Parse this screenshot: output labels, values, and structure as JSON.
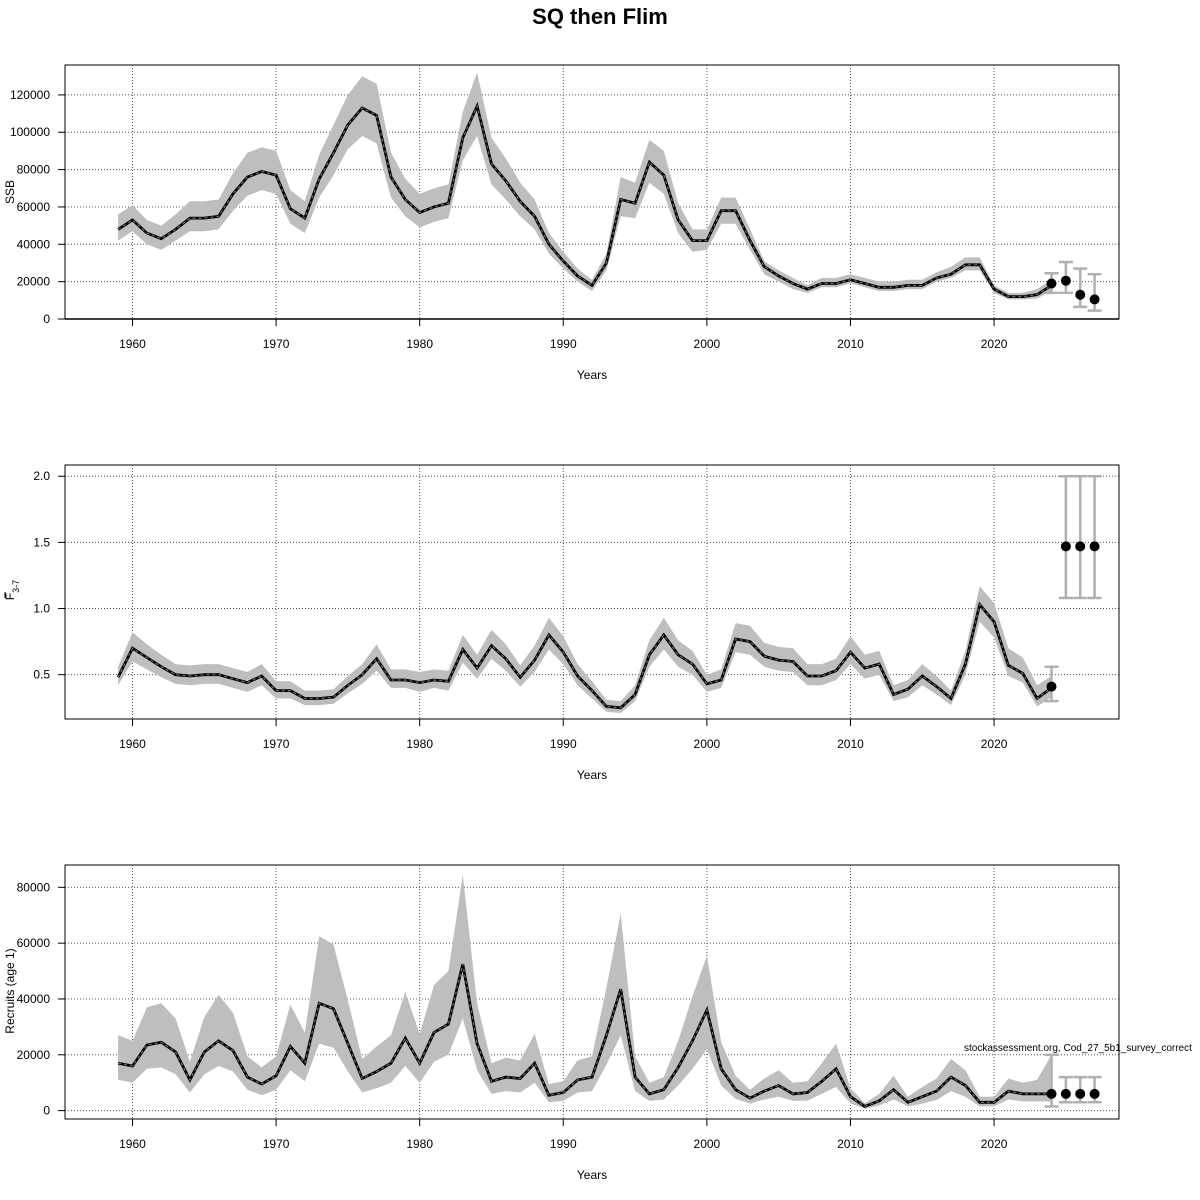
{
  "title": "SQ then Flim",
  "watermark": "stockassessment.org, Cod_27_5b1_survey_correct",
  "colors": {
    "band": "#bebebe",
    "line": "#000000",
    "grid": "#555555",
    "errorbar": "#b0b0b0"
  },
  "chart_data": [
    {
      "id": "ssb",
      "type": "line",
      "xlabel": "Years",
      "ylabel": "SSB",
      "xlim": [
        1955.3,
        2028.7
      ],
      "ylim": [
        0,
        136000
      ],
      "xticks": [
        1960,
        1970,
        1980,
        1990,
        2000,
        2010,
        2020
      ],
      "xtick_labels": [
        "1960",
        "1970",
        "1980",
        "1990",
        "2000",
        "2010",
        "2020"
      ],
      "yticks": [
        0,
        20000,
        40000,
        60000,
        80000,
        100000,
        120000
      ],
      "ytick_labels": [
        "0",
        "20000",
        "40000",
        "60000",
        "80000",
        "100000",
        "120000"
      ],
      "grid": true,
      "hline": 0,
      "x": [
        1959,
        1960,
        1961,
        1962,
        1963,
        1964,
        1965,
        1966,
        1967,
        1968,
        1969,
        1970,
        1971,
        1972,
        1973,
        1974,
        1975,
        1976,
        1977,
        1978,
        1979,
        1980,
        1981,
        1982,
        1983,
        1984,
        1985,
        1986,
        1987,
        1988,
        1989,
        1990,
        1991,
        1992,
        1993,
        1994,
        1995,
        1996,
        1997,
        1998,
        1999,
        2000,
        2001,
        2002,
        2003,
        2004,
        2005,
        2006,
        2007,
        2008,
        2009,
        2010,
        2011,
        2012,
        2013,
        2014,
        2015,
        2016,
        2017,
        2018,
        2019,
        2020,
        2021,
        2022,
        2023,
        2024
      ],
      "estimate": [
        48000,
        53000,
        46000,
        43000,
        48000,
        54000,
        54000,
        55000,
        67000,
        76000,
        79000,
        77000,
        59000,
        54000,
        75000,
        89000,
        104000,
        113000,
        109000,
        76000,
        64000,
        57000,
        60000,
        62000,
        97000,
        114000,
        83000,
        74000,
        63000,
        55000,
        40000,
        31000,
        23000,
        18000,
        30000,
        64000,
        62000,
        84000,
        77000,
        53000,
        42000,
        42000,
        58000,
        58000,
        42000,
        28000,
        23000,
        19000,
        16000,
        19000,
        19000,
        21000,
        19000,
        17000,
        17000,
        18000,
        18000,
        22000,
        24000,
        29000,
        29000,
        16000,
        12000,
        12000,
        13000,
        18000
      ],
      "lower": [
        42000,
        47000,
        40000,
        37000,
        42000,
        47000,
        47000,
        48000,
        58000,
        66000,
        69000,
        67000,
        51000,
        46000,
        65000,
        77000,
        91000,
        98000,
        94000,
        65000,
        55000,
        49000,
        52000,
        54000,
        85000,
        98000,
        72000,
        64000,
        55000,
        48000,
        35000,
        27000,
        20000,
        15000,
        26000,
        55000,
        54000,
        73000,
        67000,
        46000,
        36000,
        37000,
        51000,
        51000,
        37000,
        24000,
        20000,
        16000,
        14000,
        17000,
        17000,
        19000,
        17000,
        15000,
        15000,
        16000,
        16000,
        20000,
        22000,
        26000,
        26000,
        14000,
        10500,
        10500,
        11000,
        15000
      ],
      "upper": [
        56000,
        61000,
        53000,
        50000,
        56000,
        63000,
        63000,
        64000,
        78000,
        89000,
        92000,
        90000,
        69000,
        63000,
        88000,
        104000,
        120000,
        130000,
        126000,
        89000,
        75000,
        67000,
        70000,
        72000,
        111000,
        132000,
        97000,
        86000,
        73000,
        64000,
        46000,
        36000,
        27000,
        21000,
        35000,
        76000,
        73000,
        96000,
        90000,
        62000,
        48000,
        48000,
        65000,
        65000,
        48000,
        31000,
        26000,
        22000,
        18000,
        22000,
        22000,
        24000,
        22000,
        20000,
        20000,
        21000,
        21000,
        25000,
        28000,
        33000,
        33000,
        18000,
        14000,
        14000,
        16000,
        21000
      ],
      "forecast": {
        "x": [
          2024,
          2025,
          2026,
          2027
        ],
        "median": [
          19000,
          20500,
          13000,
          10500
        ],
        "lower": [
          14000,
          14000,
          6500,
          4500
        ],
        "upper": [
          24500,
          30500,
          27000,
          24000
        ]
      }
    },
    {
      "id": "fbar",
      "type": "line",
      "xlabel": "Years",
      "ylabel": "F3-7",
      "ylabel_main": "F",
      "ylabel_sub": "3-7",
      "xlim": [
        1955.3,
        2028.7
      ],
      "ylim": [
        0.165,
        2.085
      ],
      "xticks": [
        1960,
        1970,
        1980,
        1990,
        2000,
        2010,
        2020
      ],
      "xtick_labels": [
        "1960",
        "1970",
        "1980",
        "1990",
        "2000",
        "2010",
        "2020"
      ],
      "yticks": [
        0.5,
        1.0,
        1.5,
        2.0
      ],
      "ytick_labels": [
        "0.5",
        "1.0",
        "1.5",
        "2.0"
      ],
      "grid": true,
      "x": [
        1959,
        1960,
        1961,
        1962,
        1963,
        1964,
        1965,
        1966,
        1967,
        1968,
        1969,
        1970,
        1971,
        1972,
        1973,
        1974,
        1975,
        1976,
        1977,
        1978,
        1979,
        1980,
        1981,
        1982,
        1983,
        1984,
        1985,
        1986,
        1987,
        1988,
        1989,
        1990,
        1991,
        1992,
        1993,
        1994,
        1995,
        1996,
        1997,
        1998,
        1999,
        2000,
        2001,
        2002,
        2003,
        2004,
        2005,
        2006,
        2007,
        2008,
        2009,
        2010,
        2011,
        2012,
        2013,
        2014,
        2015,
        2016,
        2017,
        2018,
        2019,
        2020,
        2021,
        2022,
        2023,
        2024
      ],
      "estimate": [
        0.48,
        0.7,
        0.63,
        0.56,
        0.5,
        0.49,
        0.5,
        0.5,
        0.47,
        0.44,
        0.49,
        0.38,
        0.38,
        0.32,
        0.32,
        0.33,
        0.42,
        0.5,
        0.62,
        0.46,
        0.46,
        0.44,
        0.46,
        0.45,
        0.69,
        0.55,
        0.72,
        0.62,
        0.48,
        0.61,
        0.8,
        0.67,
        0.49,
        0.38,
        0.26,
        0.25,
        0.35,
        0.65,
        0.8,
        0.65,
        0.58,
        0.43,
        0.46,
        0.77,
        0.75,
        0.64,
        0.61,
        0.6,
        0.49,
        0.49,
        0.53,
        0.67,
        0.55,
        0.58,
        0.35,
        0.39,
        0.49,
        0.41,
        0.32,
        0.58,
        1.03,
        0.9,
        0.57,
        0.51,
        0.32,
        0.4
      ],
      "lower": [
        0.42,
        0.6,
        0.54,
        0.48,
        0.43,
        0.42,
        0.43,
        0.43,
        0.4,
        0.37,
        0.42,
        0.32,
        0.32,
        0.27,
        0.27,
        0.28,
        0.36,
        0.43,
        0.53,
        0.4,
        0.4,
        0.37,
        0.4,
        0.38,
        0.59,
        0.47,
        0.62,
        0.53,
        0.41,
        0.52,
        0.69,
        0.58,
        0.42,
        0.32,
        0.22,
        0.21,
        0.3,
        0.56,
        0.69,
        0.56,
        0.5,
        0.37,
        0.4,
        0.67,
        0.65,
        0.56,
        0.53,
        0.52,
        0.42,
        0.42,
        0.46,
        0.58,
        0.47,
        0.5,
        0.3,
        0.33,
        0.42,
        0.35,
        0.27,
        0.5,
        0.9,
        0.78,
        0.49,
        0.44,
        0.26,
        0.33
      ],
      "upper": [
        0.56,
        0.82,
        0.73,
        0.65,
        0.58,
        0.57,
        0.58,
        0.58,
        0.55,
        0.52,
        0.58,
        0.45,
        0.45,
        0.38,
        0.38,
        0.39,
        0.49,
        0.58,
        0.73,
        0.54,
        0.54,
        0.52,
        0.54,
        0.53,
        0.8,
        0.65,
        0.84,
        0.73,
        0.57,
        0.72,
        0.93,
        0.79,
        0.58,
        0.45,
        0.31,
        0.3,
        0.42,
        0.76,
        0.93,
        0.76,
        0.68,
        0.5,
        0.54,
        0.89,
        0.87,
        0.74,
        0.71,
        0.7,
        0.58,
        0.58,
        0.62,
        0.79,
        0.65,
        0.68,
        0.42,
        0.46,
        0.58,
        0.49,
        0.38,
        0.68,
        1.17,
        1.04,
        0.7,
        0.63,
        0.42,
        0.49
      ],
      "forecast": {
        "x": [
          2024,
          2025,
          2026,
          2027
        ],
        "median": [
          0.41,
          1.47,
          1.47,
          1.47
        ],
        "lower": [
          0.3,
          1.08,
          1.08,
          1.08
        ],
        "upper": [
          0.56,
          2.0,
          2.0,
          2.0
        ]
      }
    },
    {
      "id": "recruits",
      "type": "line",
      "xlabel": "Years",
      "ylabel": "Recruits (age 1)",
      "xlim": [
        1955.3,
        2028.7
      ],
      "ylim": [
        -3000,
        88000
      ],
      "xticks": [
        1960,
        1970,
        1980,
        1990,
        2000,
        2010,
        2020
      ],
      "xtick_labels": [
        "1960",
        "1970",
        "1980",
        "1990",
        "2000",
        "2010",
        "2020"
      ],
      "yticks": [
        0,
        20000,
        40000,
        60000,
        80000
      ],
      "ytick_labels": [
        "0",
        "20000",
        "40000",
        "60000",
        "80000"
      ],
      "grid": true,
      "x": [
        1959,
        1960,
        1961,
        1962,
        1963,
        1964,
        1965,
        1966,
        1967,
        1968,
        1969,
        1970,
        1971,
        1972,
        1973,
        1974,
        1975,
        1976,
        1977,
        1978,
        1979,
        1980,
        1981,
        1982,
        1983,
        1984,
        1985,
        1986,
        1987,
        1988,
        1989,
        1990,
        1991,
        1992,
        1993,
        1994,
        1995,
        1996,
        1997,
        1998,
        1999,
        2000,
        2001,
        2002,
        2003,
        2004,
        2005,
        2006,
        2007,
        2008,
        2009,
        2010,
        2011,
        2012,
        2013,
        2014,
        2015,
        2016,
        2017,
        2018,
        2019,
        2020,
        2021,
        2022,
        2023,
        2024
      ],
      "estimate": [
        17000,
        16000,
        23500,
        24500,
        21000,
        11000,
        21000,
        25000,
        21500,
        12000,
        9500,
        12500,
        23000,
        17000,
        38500,
        36500,
        24000,
        11500,
        14000,
        17000,
        26000,
        17000,
        28000,
        31000,
        52500,
        24000,
        10500,
        12000,
        11500,
        17000,
        5500,
        6500,
        11000,
        12000,
        27000,
        43500,
        12000,
        6000,
        7500,
        15500,
        25000,
        36000,
        15000,
        7500,
        4500,
        7000,
        9000,
        6000,
        6500,
        10500,
        15000,
        5000,
        1500,
        3500,
        7500,
        3000,
        5000,
        7000,
        12000,
        9000,
        3000,
        3000,
        7000,
        6000,
        6000,
        6000
      ],
      "lower": [
        11000,
        10000,
        15000,
        15500,
        13000,
        6500,
        13000,
        16000,
        14000,
        7500,
        5500,
        7500,
        14500,
        10500,
        24000,
        22500,
        14000,
        6500,
        8000,
        10000,
        16000,
        10000,
        17500,
        20000,
        33000,
        14500,
        6000,
        7000,
        6500,
        10000,
        3000,
        3500,
        6500,
        7000,
        16500,
        27000,
        7000,
        3500,
        4000,
        9000,
        15000,
        22000,
        9000,
        4200,
        2500,
        4000,
        5000,
        3500,
        3600,
        6000,
        8500,
        2500,
        700,
        1800,
        4000,
        1500,
        2500,
        3800,
        7000,
        5000,
        1500,
        1500,
        4000,
        3300,
        3300,
        3300
      ],
      "upper": [
        27000,
        25000,
        37000,
        38500,
        33000,
        17500,
        33500,
        41500,
        35000,
        19500,
        15500,
        19500,
        38000,
        28000,
        62500,
        59500,
        39500,
        18500,
        23000,
        27000,
        42500,
        27500,
        45000,
        50000,
        84500,
        38500,
        17000,
        19000,
        18000,
        27500,
        9500,
        10500,
        18000,
        19500,
        44000,
        70500,
        19500,
        10000,
        12000,
        25000,
        41000,
        55500,
        24500,
        12500,
        7500,
        11500,
        14500,
        10000,
        10500,
        17000,
        24000,
        8000,
        2700,
        6000,
        12500,
        5000,
        8500,
        11500,
        18500,
        14500,
        5000,
        5000,
        11500,
        10000,
        11000,
        20000
      ],
      "forecast": {
        "x": [
          2024,
          2025,
          2026,
          2027
        ],
        "median": [
          6000,
          6000,
          6000,
          6000
        ],
        "lower": [
          1500,
          3000,
          3000,
          3000
        ],
        "upper": [
          20000,
          12000,
          12000,
          12000
        ]
      }
    }
  ]
}
